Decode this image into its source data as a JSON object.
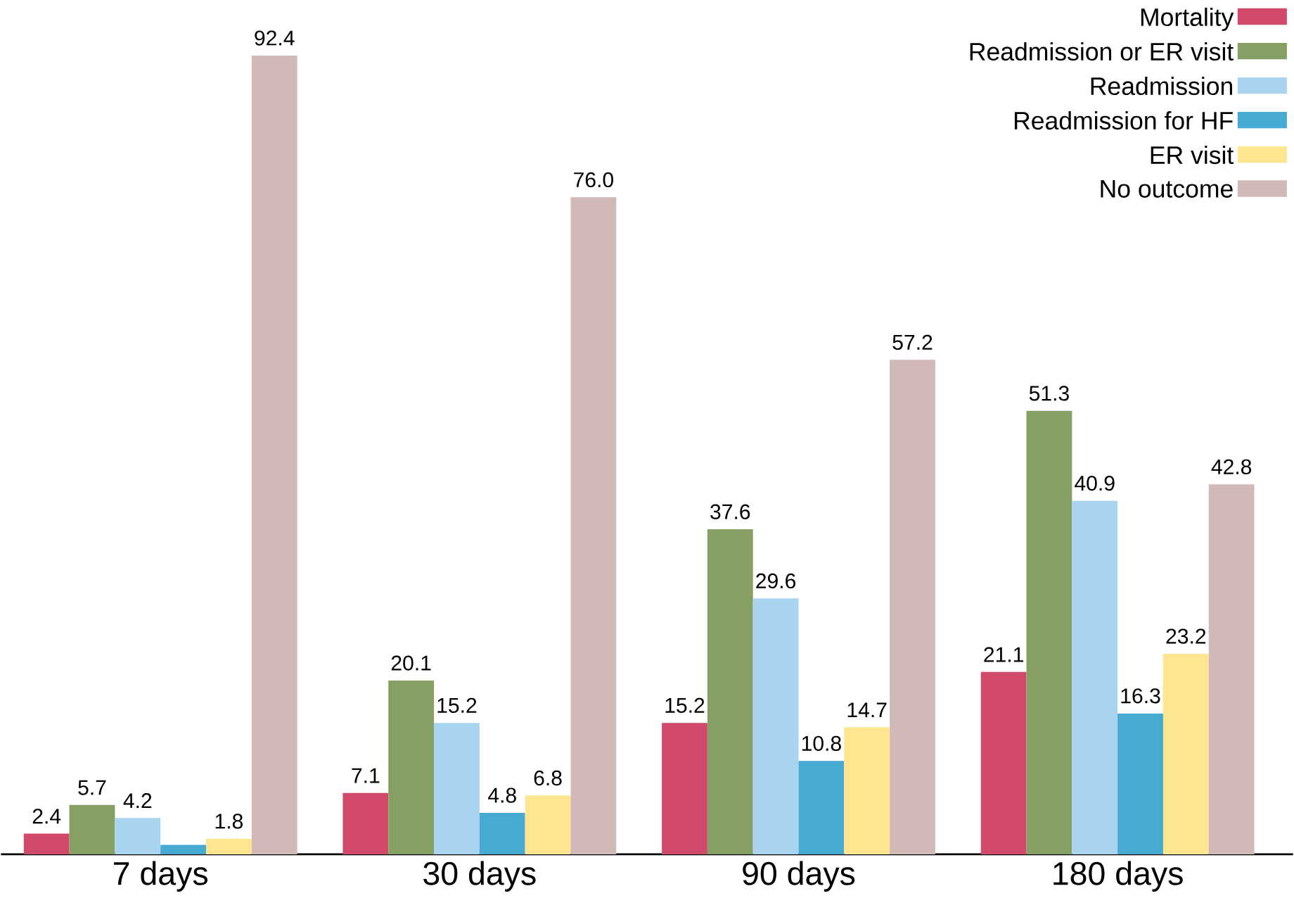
{
  "chart_data": {
    "type": "bar",
    "categories": [
      "7 days",
      "30 days",
      "90 days",
      "180 days"
    ],
    "series": [
      {
        "name": "Mortality",
        "color": "#d24a6a",
        "values": [
          2.4,
          7.1,
          15.2,
          21.1
        ],
        "value_labels": [
          "2.4",
          "7.1",
          "15.2",
          "21.1"
        ]
      },
      {
        "name": "Readmission or ER visit",
        "color": "#86a064",
        "values": [
          5.7,
          20.1,
          37.6,
          51.3
        ],
        "value_labels": [
          "5.7",
          "20.1",
          "37.6",
          "51.3"
        ]
      },
      {
        "name": "Readmission",
        "color": "#a8d4f0",
        "values": [
          4.2,
          15.2,
          29.6,
          40.9
        ],
        "value_labels": [
          "4.2",
          "15.2",
          "29.6",
          "40.9"
        ]
      },
      {
        "name": "Readmission for HF",
        "color": "#46aad2",
        "values": [
          1.1,
          4.8,
          10.8,
          16.3
        ],
        "value_labels": [
          null,
          "4.8",
          "10.8",
          "16.3"
        ]
      },
      {
        "name": "ER visit",
        "color": "#fde68f",
        "values": [
          1.8,
          6.8,
          14.7,
          23.2
        ],
        "value_labels": [
          "1.8",
          "6.8",
          "14.7",
          "23.2"
        ]
      },
      {
        "name": "No outcome",
        "color": "#d0b9b7",
        "values": [
          92.4,
          76.0,
          57.2,
          42.8
        ],
        "value_labels": [
          "92.4",
          "76.0",
          "57.2",
          "42.8"
        ]
      }
    ],
    "legend": "top right",
    "tick_labels": "x"
  }
}
